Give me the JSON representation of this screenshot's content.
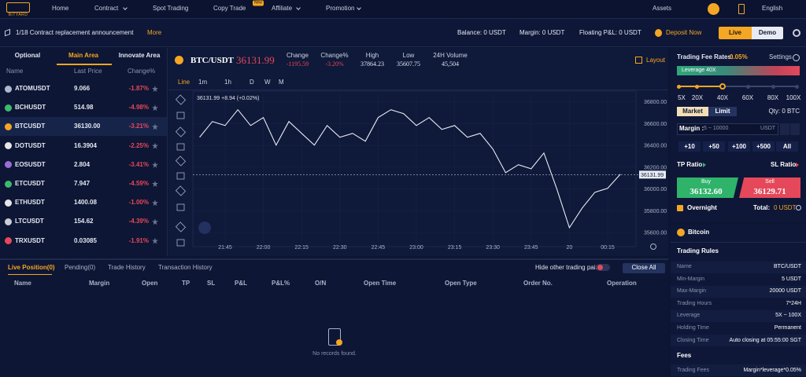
{
  "nav": {
    "logo": "BITYARD",
    "items": [
      "Home",
      "Contract",
      "Spot Trading",
      "Copy Trade",
      "Affiliate",
      "Promotion"
    ],
    "badge": "New",
    "assets": "Assets",
    "language": "English"
  },
  "bar": {
    "announcement": "1/18 Contract replacement announcement",
    "more": "More",
    "balance": "Balance: 0 USDT",
    "margin": "Margin: 0 USDT",
    "floating": "Floating P&L: 0 USDT",
    "deposit": "Deposit Now",
    "live": "Live",
    "demo": "Demo"
  },
  "market": {
    "tabs": [
      "Optional",
      "Main Area",
      "Innovate Area"
    ],
    "headers": [
      "Name",
      "Last Price",
      "Change%"
    ],
    "rows": [
      [
        "ATOMUSDT",
        "9.066",
        "-1.87%"
      ],
      [
        "BCHUSDT",
        "514.98",
        "-4.98%"
      ],
      [
        "BTCUSDT",
        "36130.00",
        "-3.21%"
      ],
      [
        "DOTUSDT",
        "16.3904",
        "-2.25%"
      ],
      [
        "EOSUSDT",
        "2.804",
        "-3.41%"
      ],
      [
        "ETCUSDT",
        "7.947",
        "-4.59%"
      ],
      [
        "ETHUSDT",
        "1400.08",
        "-1.00%"
      ],
      [
        "LTCUSDT",
        "154.62",
        "-4.39%"
      ],
      [
        "TRXUSDT",
        "0.03085",
        "-1.91%"
      ]
    ]
  },
  "ticker": {
    "symbol": "BTC/USDT",
    "price": "36131.99",
    "stats": [
      {
        "label": "Change",
        "value": "-1195.59"
      },
      {
        "label": "Change%",
        "value": "-3.20%"
      },
      {
        "label": "High",
        "value": "37864.23"
      },
      {
        "label": "Low",
        "value": "35607.75"
      },
      {
        "label": "24H Volume",
        "value": "45,504"
      }
    ],
    "layout": "Layout",
    "intervals": [
      "Line",
      "1m",
      "1h",
      "D",
      "W",
      "M"
    ]
  },
  "chart_data": {
    "type": "line",
    "annotation": "36131.99 +8.94 (+0.02%)",
    "categories": [
      null,
      null,
      "21:45",
      null,
      null,
      "22:00",
      null,
      null,
      "22:15",
      null,
      null,
      "22:30",
      null,
      null,
      "22:45",
      null,
      null,
      "23:00",
      null,
      null,
      "23:15",
      null,
      null,
      "23:30",
      null,
      null,
      "23:45",
      null,
      null,
      "20",
      null,
      null,
      "00:15",
      null
    ],
    "values": [
      36475,
      36620,
      36583,
      36728,
      36583,
      36656,
      36403,
      36620,
      36511,
      36403,
      36583,
      36475,
      36511,
      36439,
      36656,
      36728,
      36692,
      36583,
      36656,
      36547,
      36583,
      36475,
      36511,
      36367,
      36150,
      36223,
      36186,
      36331,
      36006,
      35645,
      35825,
      35970,
      36006,
      36136
    ],
    "color": "#e8ecf5",
    "ylim": [
      35500,
      36870
    ],
    "yticks": [
      {
        "value": 35600,
        "label": "35600.00"
      },
      {
        "value": 35800,
        "label": "35800.00"
      },
      {
        "value": 36000,
        "label": "36000.00"
      },
      {
        "value": 36200,
        "label": "36200.00"
      },
      {
        "value": 36400,
        "label": "36400.00"
      },
      {
        "value": 36600,
        "label": "36600.00"
      },
      {
        "value": 36800,
        "label": "36800.00"
      }
    ],
    "last_price": 36131.99
  },
  "positions": {
    "tabs": [
      "Live Position(0)",
      "Pending(0)",
      "Trade History",
      "Transaction History"
    ],
    "hide": "Hide other trading pairs",
    "close_all": "Close All",
    "columns": [
      "Name",
      "Margin",
      "Open",
      "TP",
      "SL",
      "P&L",
      "P&L%",
      "O/N",
      "Open Time",
      "Open Type",
      "Order No.",
      "Operation"
    ],
    "empty": "No records found."
  },
  "order": {
    "fee_label": "Trading Fee Rates:",
    "fee": "0.05%",
    "settings": "Settings",
    "leverage": "Leverage 40X",
    "leverage_marks": [
      "5X",
      "20X",
      "40X",
      "60X",
      "80X",
      "100X"
    ],
    "order_types": [
      "Market",
      "Limit"
    ],
    "qty": "Qty: 0 BTC",
    "margin_label": "Margin :",
    "margin_placeholder": "5 ~ 10000",
    "margin_unit": "USDT",
    "quick": [
      "+10",
      "+50",
      "+100",
      "+500",
      "All"
    ],
    "tp": "TP Ratio",
    "sl": "SL Ratio",
    "buy": {
      "label": "Buy",
      "price": "36132.60"
    },
    "sell": {
      "label": "Sell",
      "price": "36129.71"
    },
    "overnight": "Overnight",
    "total_label": "Total:",
    "total": "0 USDT"
  },
  "info": {
    "coin": "Bitcoin",
    "rules_title": "Trading Rules",
    "rules": [
      [
        "Name",
        "BTC/USDT"
      ],
      [
        "Min-Margin",
        "5 USDT"
      ],
      [
        "Max-Margin",
        "20000 USDT"
      ],
      [
        "Trading Hours",
        "7*24H"
      ],
      [
        "Leverage",
        "5X ~ 100X"
      ],
      [
        "Holding Time",
        "Permanent"
      ],
      [
        "Closing Time",
        "Auto closing at 05:55:00 SGT"
      ]
    ],
    "fees_title": "Fees",
    "fees": [
      [
        "Trading Fees",
        "Margin*leverage*0.05%"
      ]
    ]
  }
}
